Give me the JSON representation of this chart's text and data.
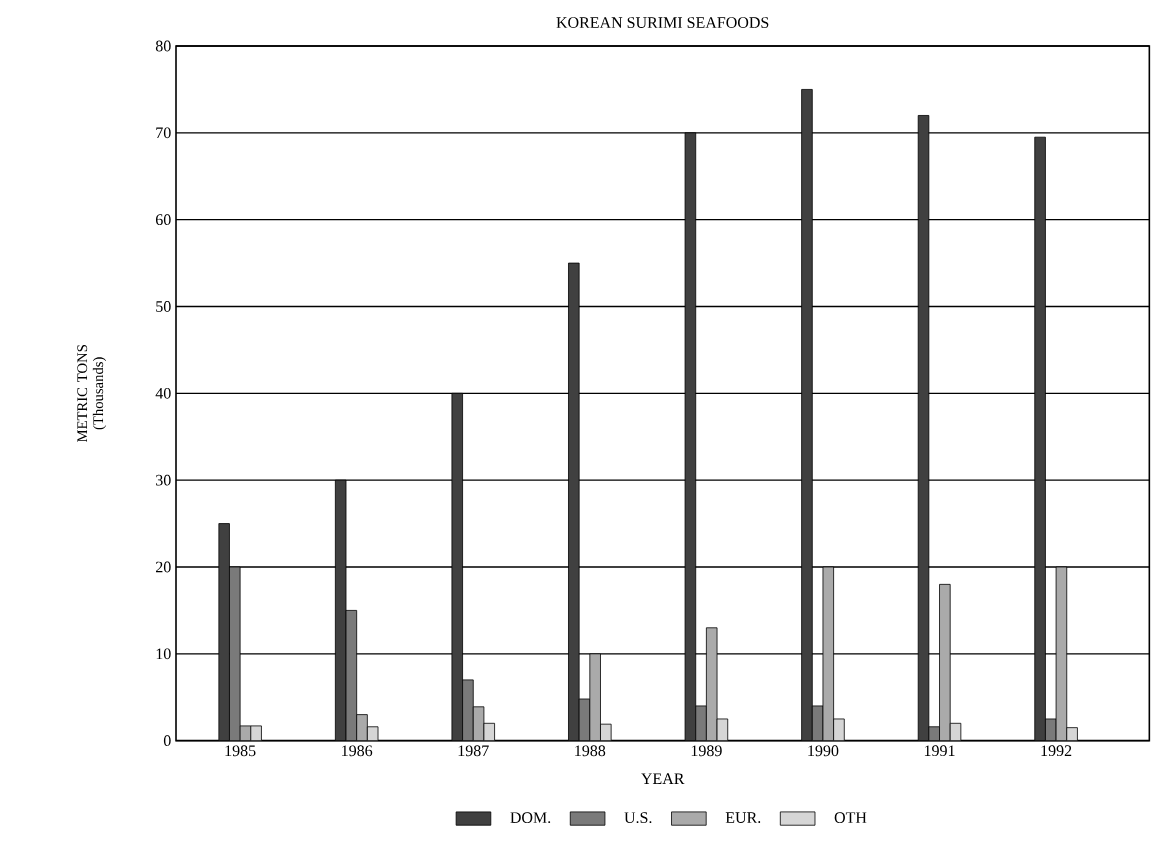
{
  "chart_data": {
    "type": "bar",
    "title": "KOREAN SURIMI SEAFOODS",
    "xlabel": "YEAR",
    "ylabel": "METRIC TONS (Thousands)",
    "categories": [
      "1985",
      "1986",
      "1987",
      "1988",
      "1989",
      "1990",
      "1991",
      "1992"
    ],
    "series": [
      {
        "name": "DOM.",
        "color": "#404040",
        "values": [
          25,
          30,
          40,
          55,
          70,
          75,
          72,
          69.5
        ]
      },
      {
        "name": "U.S.",
        "color": "#7a7a7a",
        "values": [
          20,
          15,
          7,
          4.8,
          4,
          4,
          1.6,
          2.5
        ]
      },
      {
        "name": "EUR.",
        "color": "#aaaaaa",
        "values": [
          1.7,
          3,
          3.9,
          10,
          13,
          20,
          18,
          20
        ]
      },
      {
        "name": "OTH",
        "color": "#d6d6d6",
        "values": [
          1.7,
          1.6,
          2,
          1.9,
          2.5,
          2.5,
          2,
          1.5
        ]
      }
    ],
    "ylim": [
      0,
      80
    ],
    "yticks": [
      0,
      10,
      20,
      30,
      40,
      50,
      60,
      70,
      80
    ],
    "grid": "y",
    "legend": "bottom"
  }
}
